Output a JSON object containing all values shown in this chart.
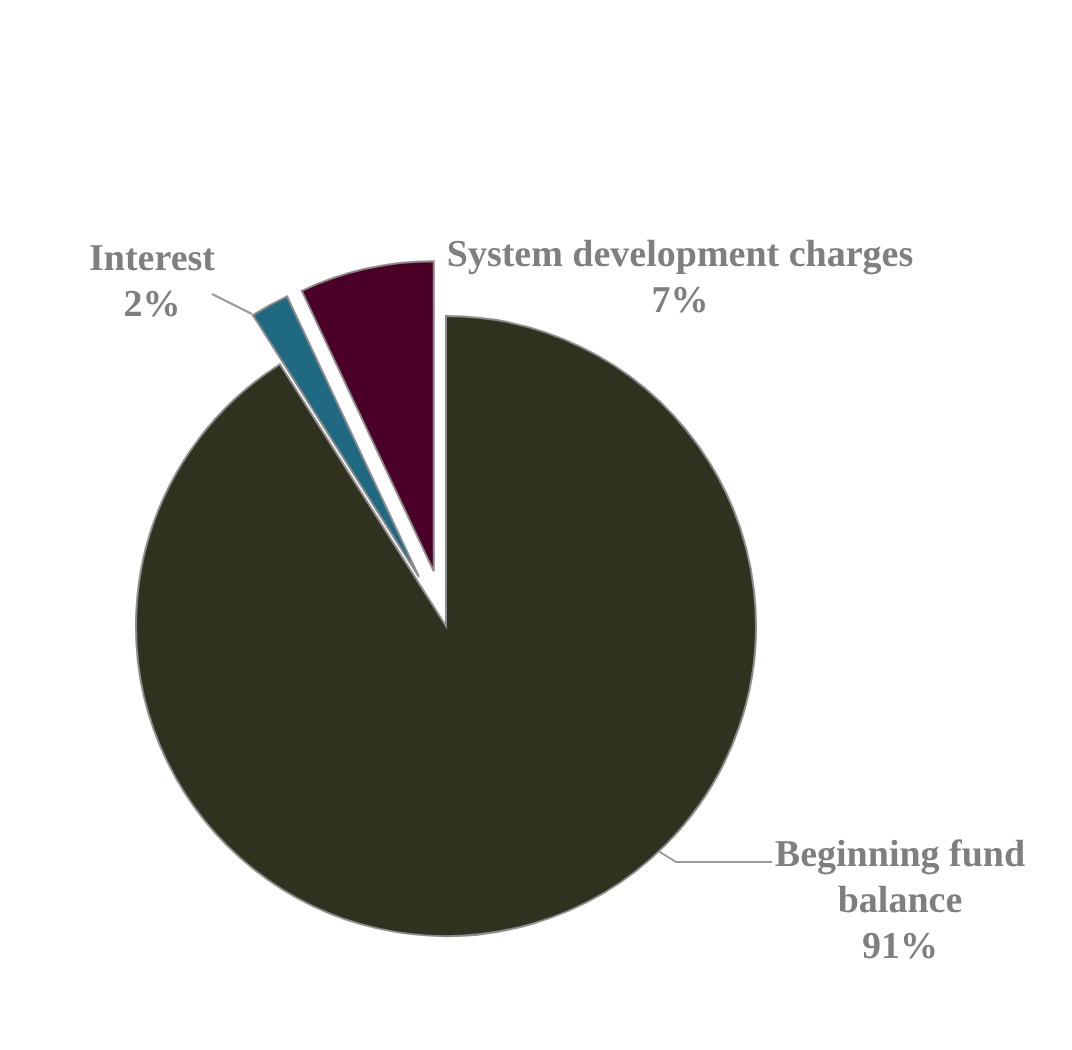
{
  "chart_data": {
    "type": "pie",
    "categories": [
      "Beginning fund balance",
      "Interest",
      "System development charges"
    ],
    "values": [
      91,
      2,
      7
    ],
    "colors": [
      "#31311f",
      "#1f6a82",
      "#4a0027"
    ],
    "value_labels": [
      "91%",
      "2%",
      "7%"
    ],
    "legend": false
  }
}
